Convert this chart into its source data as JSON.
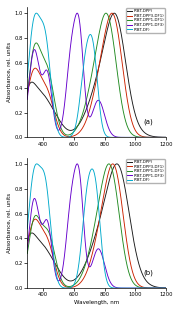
{
  "title_a": "(a)",
  "title_b": "(b)",
  "ylabel": "Absorbance, rel. units",
  "xlabel": "Wavelength, nm",
  "xlim": [
    300,
    1200
  ],
  "ylim": [
    0,
    1.05
  ],
  "yticks": [
    0.0,
    0.2,
    0.4,
    0.6,
    0.8,
    1.0
  ],
  "xticks": [
    400,
    600,
    800,
    1000,
    1200
  ],
  "legend_labels": [
    "P(BT-DPP)",
    "P(BT-DPP3-DF1)",
    "P(BT-DPP1-DF1)",
    "P(BT-DPP1-DF3)",
    "P(BT-DF)"
  ],
  "colors": [
    "#1a1a1a",
    "#cc2200",
    "#228B22",
    "#6600cc",
    "#00aacc"
  ],
  "figsize": [
    1.8,
    3.12
  ],
  "dpi": 100
}
